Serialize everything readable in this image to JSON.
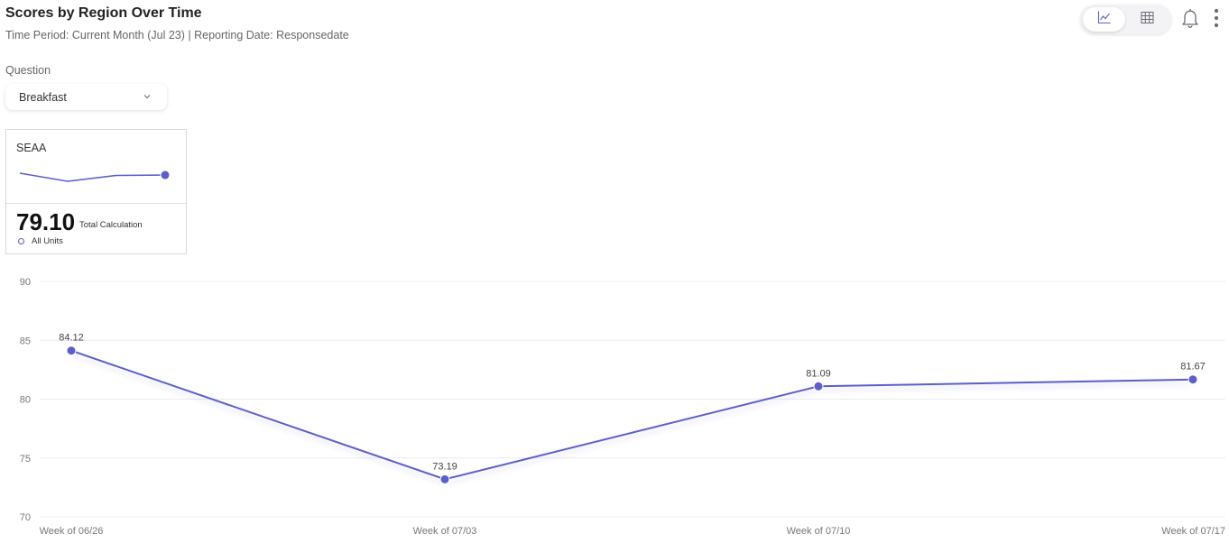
{
  "header": {
    "title": "Scores by Region Over Time",
    "subtitle": "Time Period: Current Month (Jul 23) | Reporting Date: Responsedate"
  },
  "filter": {
    "label": "Question",
    "selected": "Breakfast"
  },
  "toolbar": {
    "icons": [
      "line-chart-icon",
      "table-icon",
      "bell-icon",
      "more-vertical-icon"
    ],
    "active_view": "line-chart"
  },
  "card": {
    "name": "SEAA",
    "value": "79.10",
    "calc_label": "Total Calculation",
    "legend_label": "All Units"
  },
  "colors": {
    "series": "#5b5fc7",
    "grid": "#ececec",
    "text_muted": "#666666"
  },
  "chart_data": {
    "type": "line",
    "categories": [
      "Week of 06/26",
      "Week of 07/03",
      "Week of 07/10",
      "Week of 07/17"
    ],
    "series": [
      {
        "values": [
          84.12,
          73.19,
          81.09,
          81.67
        ]
      }
    ],
    "data_labels": [
      "84.12",
      "73.19",
      "81.09",
      "81.67"
    ],
    "yticks": [
      70,
      75,
      80,
      85,
      90
    ],
    "ylim": [
      70,
      90
    ],
    "grid": true,
    "xlabel": "",
    "ylabel": ""
  }
}
